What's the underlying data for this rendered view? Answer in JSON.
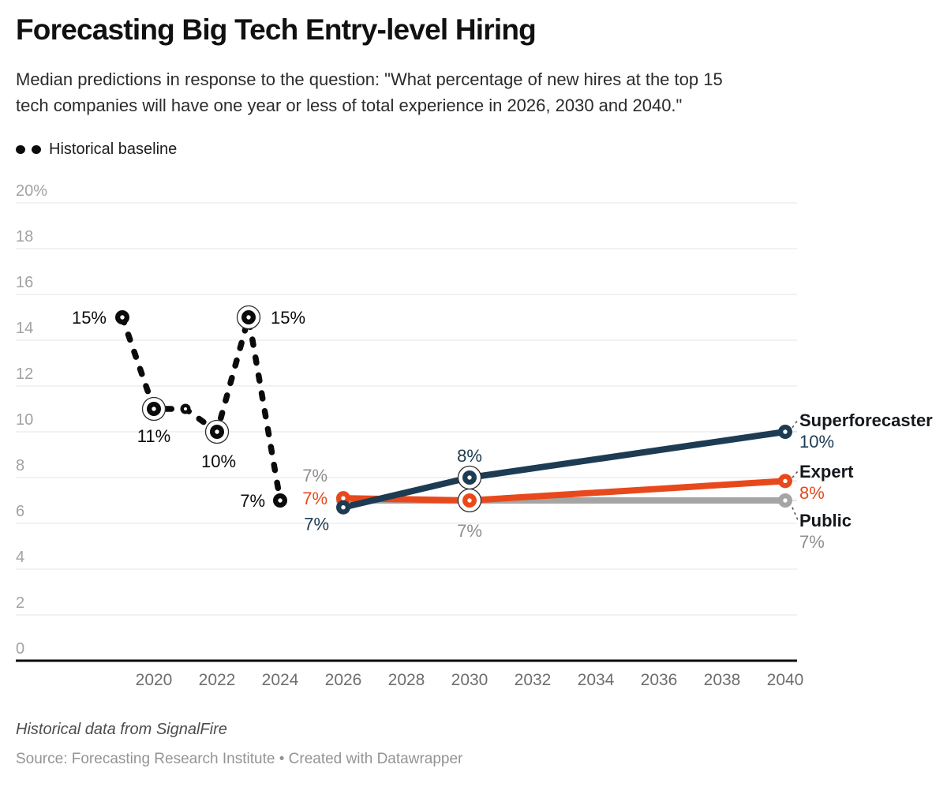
{
  "header": {
    "title": "Forecasting Big Tech Entry-level Hiring",
    "subtitle": "Median predictions in response to the question: \"What percentage of new hires at the top 15\ntech companies will have one year or less of total experience in 2026, 2030 and 2040.\""
  },
  "legend": {
    "items": [
      {
        "label": "Historical baseline",
        "style": "dashed",
        "color": "#0b0b0b"
      }
    ]
  },
  "chart_data": {
    "type": "line",
    "title": "Forecasting Big Tech Entry-level Hiring",
    "xlabel": "",
    "ylabel": "",
    "grid": true,
    "x_axis": {
      "ticks": [
        2020,
        2022,
        2024,
        2026,
        2028,
        2030,
        2032,
        2034,
        2036,
        2038,
        2040
      ]
    },
    "y_axis": {
      "range": [
        0,
        20
      ],
      "ticks": [
        {
          "value": 0,
          "label": "0"
        },
        {
          "value": 2,
          "label": "2"
        },
        {
          "value": 4,
          "label": "4"
        },
        {
          "value": 6,
          "label": "6"
        },
        {
          "value": 8,
          "label": "8"
        },
        {
          "value": 10,
          "label": "10"
        },
        {
          "value": 12,
          "label": "12"
        },
        {
          "value": 14,
          "label": "14"
        },
        {
          "value": 16,
          "label": "16"
        },
        {
          "value": 18,
          "label": "18"
        },
        {
          "value": 20,
          "label": "20%"
        }
      ]
    },
    "series": [
      {
        "name": "Historical baseline",
        "color": "#0b0b0b",
        "style": "dashed",
        "points": [
          {
            "year": 2019,
            "value": 15,
            "label": "15%",
            "anchor": "end",
            "dx": -20,
            "dy": 8
          },
          {
            "year": 2020,
            "value": 11,
            "label": "11%",
            "ring": true,
            "anchor": "middle",
            "dx": 0,
            "dy": 42
          },
          {
            "year": 2021,
            "value": 11,
            "small": true
          },
          {
            "year": 2022,
            "value": 10,
            "label": "10%",
            "ring": true,
            "anchor": "middle",
            "dx": 2,
            "dy": 45
          },
          {
            "year": 2023,
            "value": 15,
            "label": "15%",
            "ring": true,
            "anchor": "start",
            "dx": 28,
            "dy": 8
          },
          {
            "year": 2024,
            "value": 7,
            "label": "7%",
            "anchor": "end",
            "dx": -19,
            "dy": 8
          }
        ]
      },
      {
        "name": "Public",
        "color": "#a5a5a5",
        "style": "solid",
        "label_color": "#8f8f8f",
        "end_label": {
          "name": "Public",
          "value": "7%"
        },
        "points": [
          {
            "year": 2026,
            "value": 7,
            "label": "7%",
            "anchor": "end",
            "dx": -20,
            "dy": -24
          },
          {
            "year": 2030,
            "value": 7,
            "label": "7%",
            "anchor": "middle",
            "dx": 0,
            "dy": 46
          },
          {
            "year": 2040,
            "value": 7
          }
        ]
      },
      {
        "name": "Expert",
        "color": "#e8491c",
        "style": "solid",
        "end_label": {
          "name": "Expert",
          "value": "8%"
        },
        "points": [
          {
            "year": 2026,
            "value": 7,
            "plot": 7.1,
            "label": "7%",
            "anchor": "end",
            "dx": -20,
            "dy": 8
          },
          {
            "year": 2030,
            "value": 7,
            "ring": true
          },
          {
            "year": 2040,
            "value": 8,
            "plot": 7.85
          }
        ]
      },
      {
        "name": "Superforecaster",
        "color": "#1d3c53",
        "style": "solid",
        "end_label": {
          "name": "Superforecaster",
          "value": "10%"
        },
        "points": [
          {
            "year": 2026,
            "value": 7,
            "plot": 6.7,
            "label": "7%",
            "anchor": "end",
            "dx": -18,
            "dy": 29
          },
          {
            "year": 2030,
            "value": 8,
            "label": "8%",
            "ring": true,
            "anchor": "middle",
            "dx": 0,
            "dy": -20
          },
          {
            "year": 2040,
            "value": 10
          }
        ]
      }
    ]
  },
  "footer": {
    "note": "Historical data from SignalFire",
    "source": "Source: Forecasting Research Institute  • Created with Datawrapper"
  }
}
